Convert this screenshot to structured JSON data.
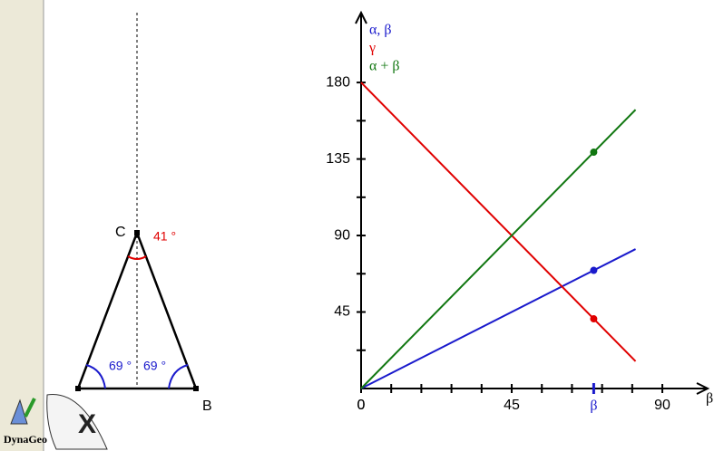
{
  "sidebar": {
    "logo_text": "DynaGeo"
  },
  "triangle": {
    "vertex_labels": [
      "C",
      "B"
    ],
    "angle_labels": [
      "41 °",
      "69 °",
      "69 °"
    ]
  },
  "chart_data": {
    "type": "line",
    "x_label": "β",
    "series": [
      {
        "name": "α, β",
        "color": "#1a1acc",
        "x": [
          0,
          82
        ],
        "values": [
          0,
          82
        ],
        "marker": 69.5
      },
      {
        "name": "γ",
        "color": "#e00000",
        "x": [
          0,
          82
        ],
        "values": [
          180,
          16
        ],
        "marker": 41
      },
      {
        "name": "α + β",
        "color": "#117711",
        "x": [
          0,
          82
        ],
        "values": [
          0,
          164
        ],
        "marker": 139
      }
    ],
    "marker_x": {
      "value": 69.5,
      "label": "β"
    },
    "xlim": [
      0,
      103
    ],
    "ylim": [
      0,
      220
    ],
    "xticks": [
      0,
      45,
      90
    ],
    "yticks": [
      45,
      90,
      135,
      180
    ],
    "xminor": [
      9,
      18,
      27,
      36,
      54,
      63,
      72,
      81
    ],
    "yminor": [
      22.5,
      67.5,
      112.5,
      157.5
    ]
  }
}
